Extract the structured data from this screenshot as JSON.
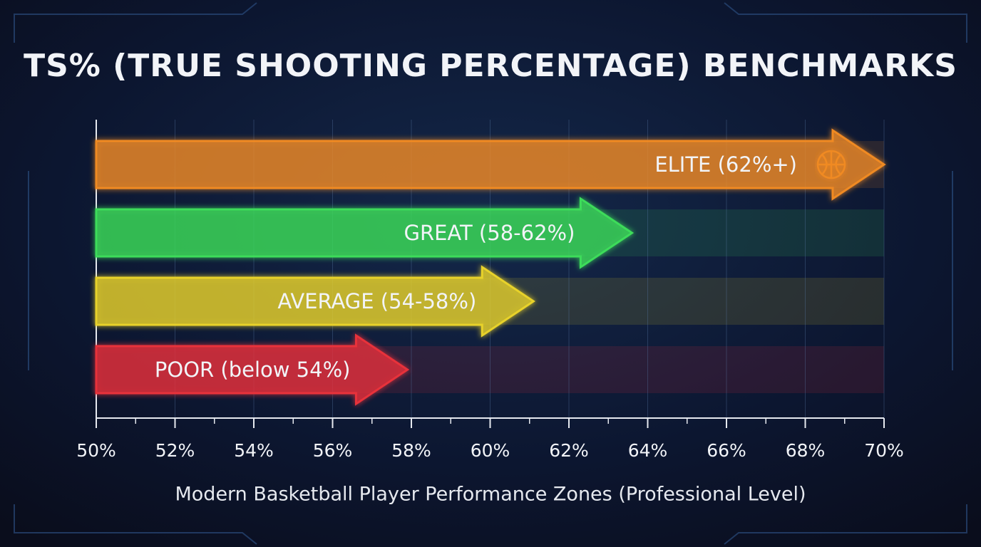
{
  "chart_data": {
    "type": "arrow-bar",
    "title": "TS% (TRUE SHOOTING PERCENTAGE) BENCHMARKS",
    "x_label": "Modern Basketball Player Performance Zones (Professional Level)",
    "categories": [
      "ELITE (62%+)",
      "GREAT (58-62%)",
      "AVERAGE (54-58%)",
      "POOR (below 54%)"
    ],
    "values": [
      70,
      63.6,
      61.1,
      57.9
    ],
    "colors": [
      "#f08a24",
      "#3ddc5a",
      "#e8d22a",
      "#e8303a"
    ],
    "xlim": [
      50,
      70
    ],
    "xticks": [
      {
        "value": 50,
        "label": "50%"
      },
      {
        "value": 52,
        "label": "52%"
      },
      {
        "value": 54,
        "label": "54%"
      },
      {
        "value": 56,
        "label": "56%"
      },
      {
        "value": 58,
        "label": "58%"
      },
      {
        "value": 60,
        "label": "60%"
      },
      {
        "value": 62,
        "label": "62%"
      },
      {
        "value": 64,
        "label": "64%"
      },
      {
        "value": 66,
        "label": "66%"
      },
      {
        "value": 68,
        "label": "68%"
      },
      {
        "value": 70,
        "label": "70%"
      }
    ],
    "minor_xticks": [
      51,
      53,
      55,
      57,
      59,
      61,
      63,
      65,
      67,
      69
    ],
    "grid": true
  }
}
